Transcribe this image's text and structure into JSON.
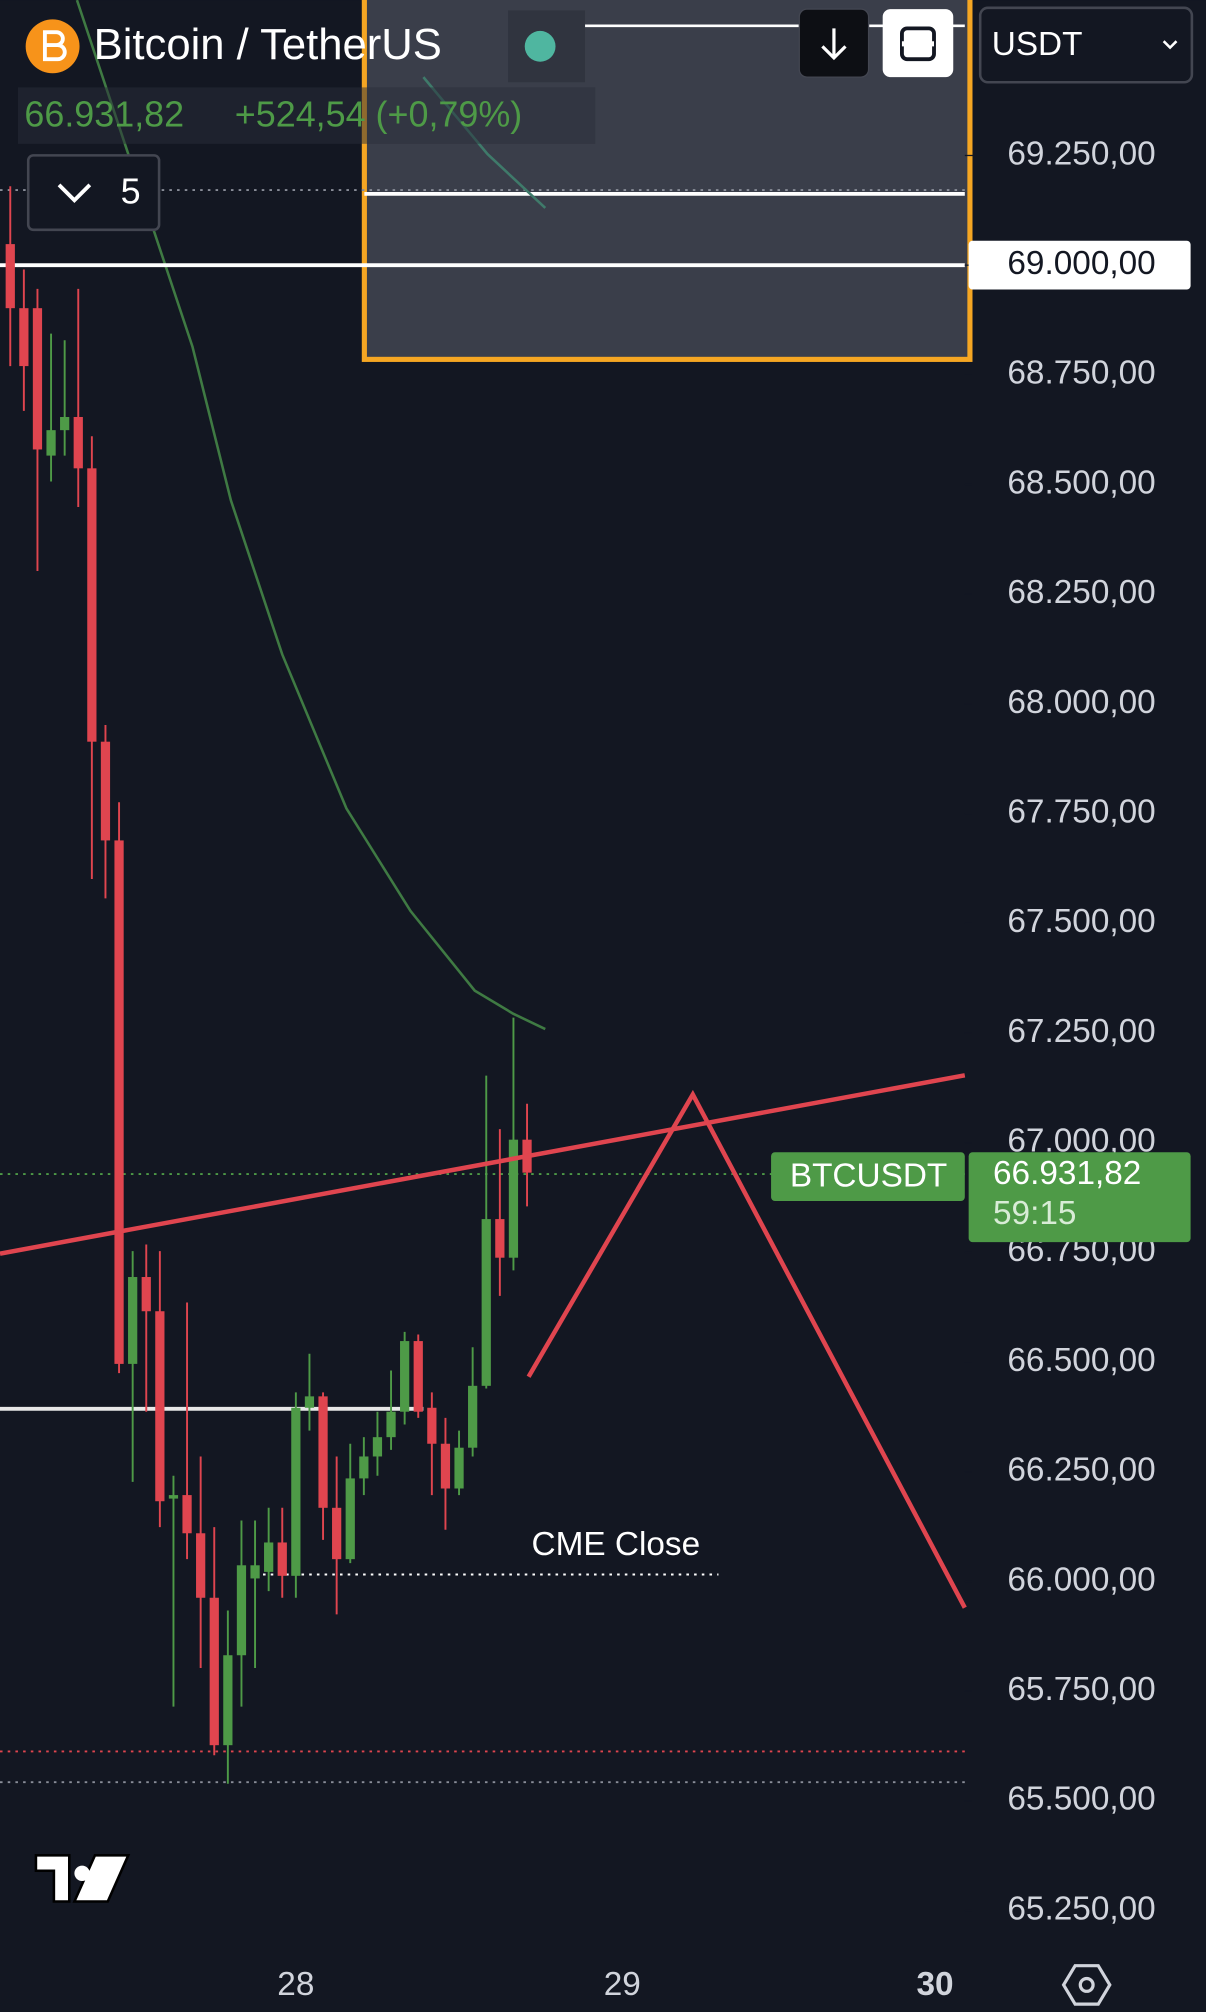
{
  "header": {
    "title": "Bitcoin / TetherUS",
    "price": "66.931,82",
    "change": "+524,54 (+0,79%)"
  },
  "toolbar": {
    "currency": "USDT"
  },
  "indicators": {
    "count": "5"
  },
  "price_label": {
    "symbol": "BTCUSDT",
    "countdown": "59:15"
  },
  "chart_data": {
    "type": "candlestick",
    "up_color": "#4e9a47",
    "down_color": "#e0454f",
    "categories": [
      null,
      null,
      null,
      null,
      null,
      null,
      null,
      null,
      null,
      null,
      null,
      null,
      null,
      null,
      null,
      null,
      null,
      null,
      null,
      null,
      null,
      "28",
      null,
      null,
      null,
      null,
      null,
      null,
      null,
      null,
      null,
      null,
      null,
      null,
      null,
      null,
      null,
      null,
      null,
      null,
      null,
      null,
      null,
      null,
      null,
      "29",
      null,
      null,
      null,
      null,
      null,
      null,
      null,
      null,
      null,
      null,
      null,
      null,
      null,
      null,
      null,
      null,
      null,
      null,
      null,
      null,
      null,
      null,
      "30",
      null,
      null
    ],
    "open": [
      69048,
      68902,
      68902,
      68566,
      68624,
      68654,
      68537,
      67914,
      67689,
      66496,
      66694,
      66616,
      66189,
      66197,
      66110,
      65963,
      65627,
      65832,
      66007,
      66022,
      66089,
      66013,
      66396,
      66422,
      66168,
      66051,
      66235,
      66285,
      66329,
      66387,
      66548,
      66396,
      66314,
      66212,
      66305,
      66446,
      66826,
      66738,
      67007,
      null,
      null,
      null,
      null,
      null,
      null,
      null,
      null,
      null,
      null,
      null,
      null,
      null,
      null,
      null,
      null,
      null,
      null,
      null,
      null,
      null,
      null,
      null,
      null,
      null,
      null,
      null,
      null,
      null,
      null,
      null,
      null
    ],
    "high": [
      69180,
      68990,
      68946,
      68844,
      68829,
      68946,
      68610,
      67952,
      67776,
      66753,
      66768,
      66753,
      66241,
      66636,
      66285,
      66124,
      65934,
      66139,
      66139,
      66168,
      66168,
      66431,
      66519,
      66431,
      66285,
      66314,
      66329,
      66387,
      66481,
      66569,
      66563,
      66431,
      66373,
      66344,
      66534,
      67153,
      67031,
      67285,
      67089,
      null,
      null,
      null,
      null,
      null,
      null,
      null,
      null,
      null,
      null,
      null,
      null,
      null,
      null,
      null,
      null,
      null,
      null,
      null,
      null,
      null,
      null,
      null,
      null,
      null,
      null,
      null,
      null,
      null,
      null,
      null,
      null
    ],
    "low": [
      68770,
      68668,
      68303,
      68507,
      68566,
      68449,
      67601,
      67557,
      66475,
      66227,
      66387,
      66124,
      65715,
      66051,
      65803,
      65604,
      65539,
      65715,
      65803,
      65978,
      65963,
      65963,
      66344,
      66095,
      65925,
      66042,
      66197,
      66241,
      66300,
      66358,
      66373,
      66197,
      66118,
      66197,
      66285,
      66440,
      66651,
      66709,
      66855,
      null,
      null,
      null,
      null,
      null,
      null,
      null,
      null,
      null,
      null,
      null,
      null,
      null,
      null,
      null,
      null,
      null,
      null,
      null,
      null,
      null,
      null,
      null,
      null,
      null,
      null,
      null,
      null,
      null,
      null,
      null,
      null
    ],
    "close": [
      68902,
      68770,
      68580,
      68624,
      68654,
      68537,
      67914,
      67689,
      66496,
      66694,
      66616,
      66183,
      66197,
      66110,
      65963,
      65627,
      65832,
      66037,
      66037,
      66089,
      66013,
      66396,
      66422,
      66168,
      66051,
      66235,
      66285,
      66329,
      66387,
      66548,
      66387,
      66314,
      66212,
      66305,
      66446,
      66826,
      66738,
      67007,
      66931.82,
      null,
      null,
      null,
      null,
      null,
      null,
      null,
      null,
      null,
      null,
      null,
      null,
      null,
      null,
      null,
      null,
      null,
      null,
      null,
      null,
      null,
      null,
      null,
      null,
      null,
      null,
      null,
      null,
      null,
      null,
      null,
      null
    ],
    "ylim": [
      65145,
      69604
    ],
    "yticks": [
      {
        "value": 69250,
        "label": "69.250,00"
      },
      {
        "value": 69000,
        "label": "69.000,00"
      },
      {
        "value": 68750,
        "label": "68.750,00"
      },
      {
        "value": 68500,
        "label": "68.500,00"
      },
      {
        "value": 68250,
        "label": "68.250,00"
      },
      {
        "value": 68000,
        "label": "68.000,00"
      },
      {
        "value": 67750,
        "label": "67.750,00"
      },
      {
        "value": 67500,
        "label": "67.500,00"
      },
      {
        "value": 67250,
        "label": "67.250,00"
      },
      {
        "value": 67000,
        "label": "67.000,00"
      },
      {
        "value": 66750,
        "label": "66.750,00"
      },
      {
        "value": 66500,
        "label": "66.500,00"
      },
      {
        "value": 66250,
        "label": "66.250,00"
      },
      {
        "value": 66000,
        "label": "66.000,00"
      },
      {
        "value": 65750,
        "label": "65.750,00"
      },
      {
        "value": 65500,
        "label": "65.500,00"
      },
      {
        "value": 65250,
        "label": "65.250,00"
      }
    ],
    "levels": [
      {
        "value": 69000,
        "label": "69.000,00"
      }
    ],
    "annotations": [
      {
        "text": "CME Close",
        "value": 66016
      }
    ]
  }
}
